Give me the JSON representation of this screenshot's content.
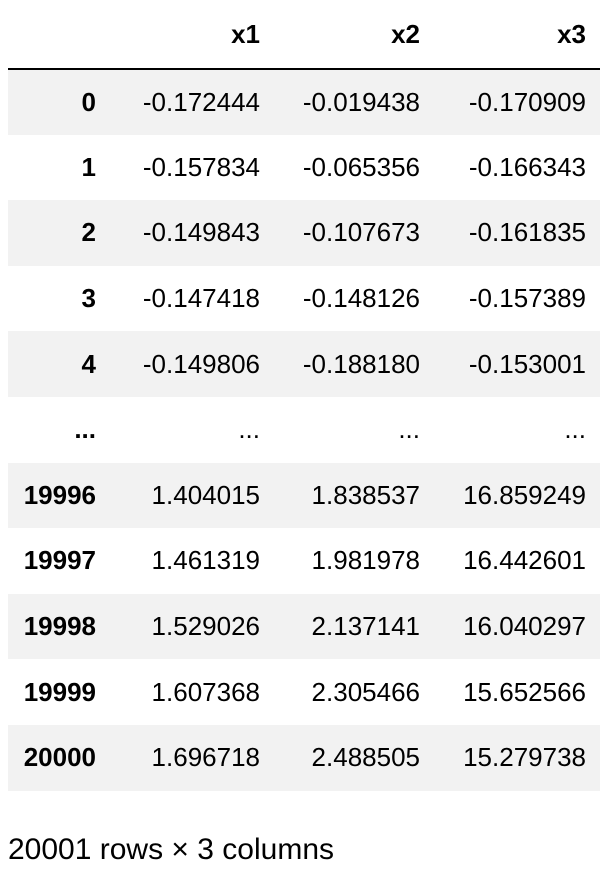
{
  "table": {
    "index_header": "",
    "columns": [
      "x1",
      "x2",
      "x3"
    ],
    "rows": [
      {
        "index": "0",
        "values": [
          "-0.172444",
          "-0.019438",
          "-0.170909"
        ]
      },
      {
        "index": "1",
        "values": [
          "-0.157834",
          "-0.065356",
          "-0.166343"
        ]
      },
      {
        "index": "2",
        "values": [
          "-0.149843",
          "-0.107673",
          "-0.161835"
        ]
      },
      {
        "index": "3",
        "values": [
          "-0.147418",
          "-0.148126",
          "-0.157389"
        ]
      },
      {
        "index": "4",
        "values": [
          "-0.149806",
          "-0.188180",
          "-0.153001"
        ]
      },
      {
        "index": "...",
        "values": [
          "...",
          "...",
          "..."
        ]
      },
      {
        "index": "19996",
        "values": [
          "1.404015",
          "1.838537",
          "16.859249"
        ]
      },
      {
        "index": "19997",
        "values": [
          "1.461319",
          "1.981978",
          "16.442601"
        ]
      },
      {
        "index": "19998",
        "values": [
          "1.529026",
          "2.137141",
          "16.040297"
        ]
      },
      {
        "index": "19999",
        "values": [
          "1.607368",
          "2.305466",
          "15.652566"
        ]
      },
      {
        "index": "20000",
        "values": [
          "1.696718",
          "2.488505",
          "15.279738"
        ]
      }
    ]
  },
  "footer": {
    "shape_text": "20001 rows × 3 columns"
  },
  "colors": {
    "stripe": "#f2f2f2",
    "background": "#ffffff",
    "text": "#000000"
  }
}
